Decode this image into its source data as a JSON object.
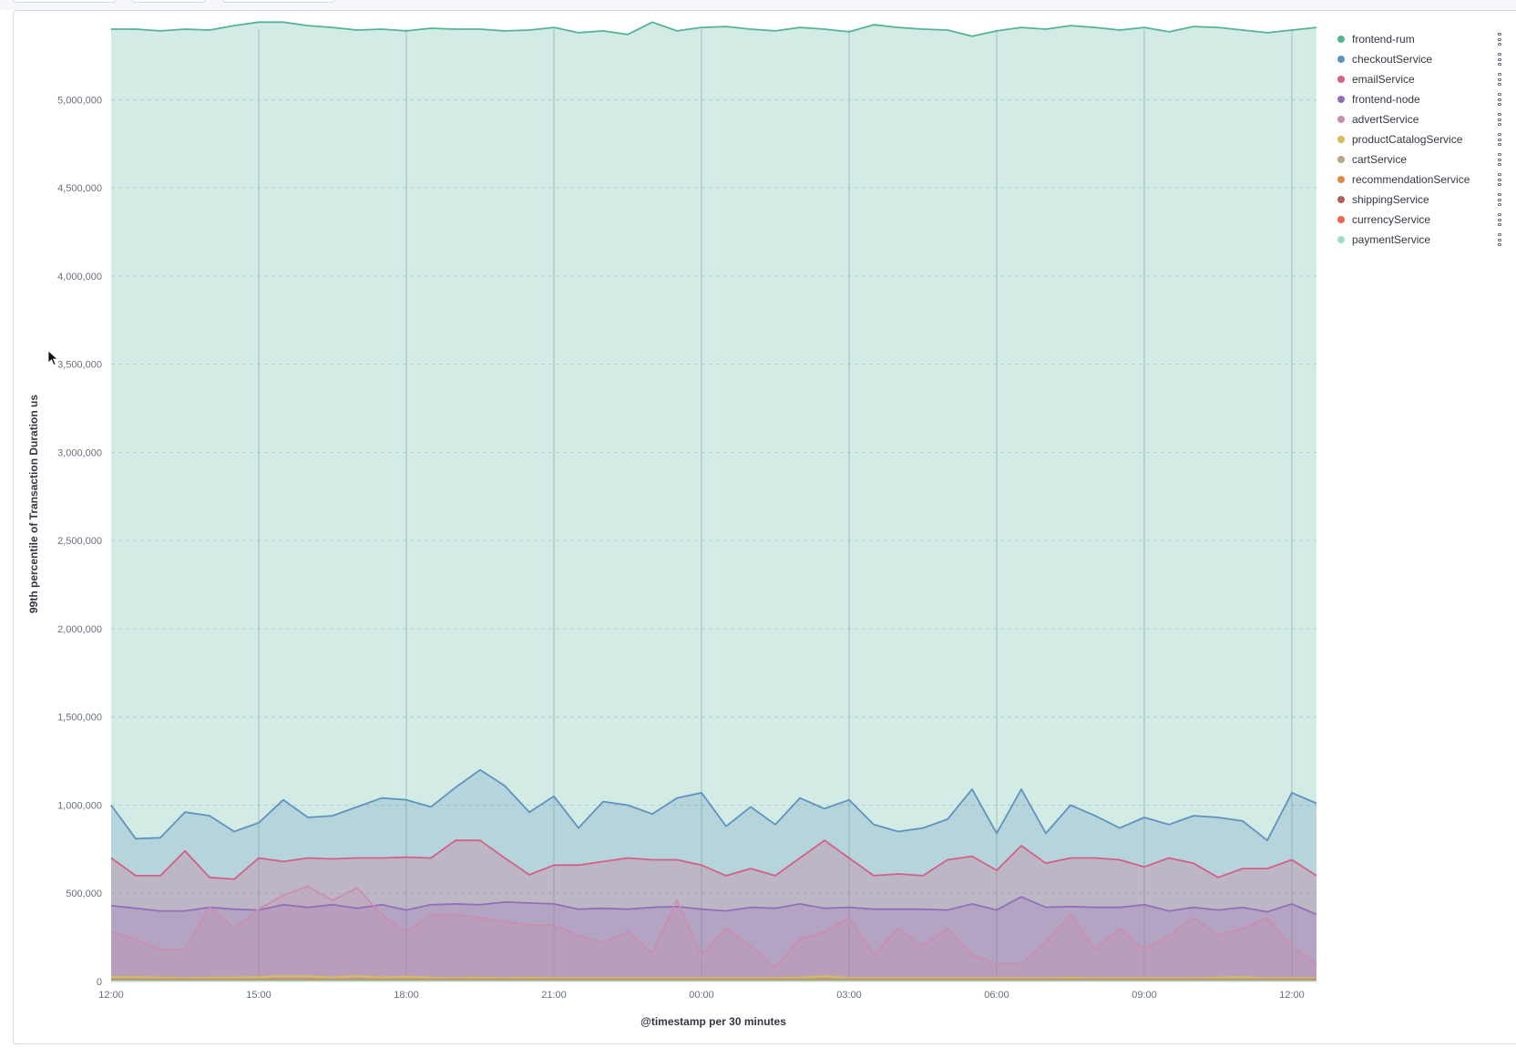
{
  "chart_data": {
    "type": "area",
    "stacked": false,
    "ylabel": "99th percentile of Transaction Duration us",
    "xlabel": "@timestamp per 30 minutes",
    "ylim": [
      0,
      5400000
    ],
    "yticks": [
      {
        "value": 0,
        "label": "0"
      },
      {
        "value": 500000,
        "label": "500,000"
      },
      {
        "value": 1000000,
        "label": "1,000,000"
      },
      {
        "value": 1500000,
        "label": "1,500,000"
      },
      {
        "value": 2000000,
        "label": "2,000,000"
      },
      {
        "value": 2500000,
        "label": "2,500,000"
      },
      {
        "value": 3000000,
        "label": "3,000,000"
      },
      {
        "value": 3500000,
        "label": "3,500,000"
      },
      {
        "value": 4000000,
        "label": "4,000,000"
      },
      {
        "value": 4500000,
        "label": "4,500,000"
      },
      {
        "value": 5000000,
        "label": "5,000,000"
      }
    ],
    "xticks": [
      {
        "index": 0,
        "label": "12:00"
      },
      {
        "index": 6,
        "label": "15:00"
      },
      {
        "index": 12,
        "label": "18:00"
      },
      {
        "index": 18,
        "label": "21:00"
      },
      {
        "index": 24,
        "label": "00:00"
      },
      {
        "index": 30,
        "label": "03:00"
      },
      {
        "index": 36,
        "label": "06:00"
      },
      {
        "index": 42,
        "label": "09:00"
      },
      {
        "index": 48,
        "label": "12:00"
      }
    ],
    "x": [
      "12:00",
      "12:30",
      "13:00",
      "13:30",
      "14:00",
      "14:30",
      "15:00",
      "15:30",
      "16:00",
      "16:30",
      "17:00",
      "17:30",
      "18:00",
      "18:30",
      "19:00",
      "19:30",
      "20:00",
      "20:30",
      "21:00",
      "21:30",
      "22:00",
      "22:30",
      "23:00",
      "23:30",
      "00:00",
      "00:30",
      "01:00",
      "01:30",
      "02:00",
      "02:30",
      "03:00",
      "03:30",
      "04:00",
      "04:30",
      "05:00",
      "05:30",
      "06:00",
      "06:30",
      "07:00",
      "07:30",
      "08:00",
      "08:30",
      "09:00",
      "09:30",
      "10:00",
      "10:30",
      "11:00",
      "11:30",
      "12:00",
      "12:30"
    ],
    "series": [
      {
        "name": "frontend-rum",
        "color": "#54b399",
        "values": [
          5400000,
          5400000,
          5390000,
          5400000,
          5395000,
          5420000,
          5440000,
          5440000,
          5420000,
          5410000,
          5395000,
          5400000,
          5390000,
          5405000,
          5400000,
          5400000,
          5390000,
          5395000,
          5410000,
          5380000,
          5390000,
          5370000,
          5440000,
          5390000,
          5410000,
          5415000,
          5400000,
          5390000,
          5410000,
          5400000,
          5385000,
          5425000,
          5410000,
          5400000,
          5395000,
          5360000,
          5390000,
          5410000,
          5400000,
          5420000,
          5410000,
          5395000,
          5410000,
          5385000,
          5415000,
          5410000,
          5395000,
          5380000,
          5395000,
          5410000
        ]
      },
      {
        "name": "checkoutService",
        "color": "#6092c0",
        "values": [
          1000000,
          810000,
          815000,
          960000,
          940000,
          850000,
          900000,
          1030000,
          930000,
          940000,
          990000,
          1040000,
          1030000,
          990000,
          1100000,
          1200000,
          1110000,
          960000,
          1050000,
          870000,
          1020000,
          1000000,
          950000,
          1040000,
          1070000,
          880000,
          990000,
          890000,
          1040000,
          980000,
          1030000,
          890000,
          850000,
          870000,
          920000,
          1090000,
          840000,
          1090000,
          840000,
          1000000,
          940000,
          870000,
          930000,
          890000,
          940000,
          930000,
          910000,
          800000,
          1070000,
          1010000
        ]
      },
      {
        "name": "emailService",
        "color": "#d36086",
        "values": [
          700000,
          600000,
          600000,
          740000,
          590000,
          580000,
          700000,
          680000,
          700000,
          695000,
          700000,
          700000,
          705000,
          700000,
          800000,
          800000,
          700000,
          605000,
          660000,
          660000,
          680000,
          700000,
          690000,
          690000,
          660000,
          600000,
          640000,
          600000,
          700000,
          800000,
          700000,
          600000,
          610000,
          600000,
          690000,
          710000,
          630000,
          770000,
          670000,
          700000,
          700000,
          690000,
          650000,
          700000,
          670000,
          590000,
          640000,
          640000,
          690000,
          600000
        ]
      },
      {
        "name": "frontend-node",
        "color": "#9170b8",
        "values": [
          430000,
          415000,
          400000,
          400000,
          420000,
          410000,
          405000,
          435000,
          420000,
          435000,
          415000,
          435000,
          405000,
          435000,
          440000,
          435000,
          450000,
          445000,
          440000,
          410000,
          415000,
          410000,
          420000,
          425000,
          410000,
          400000,
          420000,
          415000,
          440000,
          415000,
          420000,
          410000,
          410000,
          410000,
          405000,
          440000,
          405000,
          480000,
          420000,
          425000,
          420000,
          420000,
          435000,
          400000,
          420000,
          405000,
          420000,
          395000,
          440000,
          380000
        ]
      },
      {
        "name": "advertService",
        "color": "#ca8eae",
        "values": [
          280000,
          240000,
          180000,
          180000,
          420000,
          300000,
          410000,
          490000,
          540000,
          460000,
          530000,
          380000,
          280000,
          380000,
          380000,
          360000,
          340000,
          320000,
          320000,
          260000,
          220000,
          280000,
          160000,
          460000,
          150000,
          300000,
          200000,
          80000,
          240000,
          280000,
          360000,
          150000,
          300000,
          200000,
          300000,
          150000,
          100000,
          100000,
          220000,
          380000,
          180000,
          300000,
          180000,
          260000,
          360000,
          260000,
          300000,
          360000,
          200000,
          100000
        ]
      },
      {
        "name": "productCatalogService",
        "color": "#d6bf57",
        "values": [
          25000,
          25000,
          22000,
          20000,
          22000,
          22000,
          25000,
          32000,
          30000,
          22000,
          32000,
          22000,
          28000,
          22000,
          20000,
          22000,
          20000,
          22000,
          20000,
          20000,
          20000,
          20000,
          20000,
          20000,
          20000,
          20000,
          20000,
          20000,
          22000,
          30000,
          20000,
          20000,
          20000,
          20000,
          20000,
          20000,
          20000,
          20000,
          20000,
          22000,
          20000,
          20000,
          20000,
          20000,
          20000,
          22000,
          25000,
          20000,
          20000,
          20000
        ]
      },
      {
        "name": "cartService",
        "color": "#b9a888",
        "values": [
          15000,
          15000,
          15000,
          15000,
          15000,
          15000,
          15000,
          15000,
          15000,
          15000,
          15000,
          15000,
          15000,
          15000,
          15000,
          15000,
          15000,
          15000,
          15000,
          15000,
          15000,
          15000,
          15000,
          15000,
          15000,
          15000,
          15000,
          15000,
          15000,
          15000,
          15000,
          15000,
          15000,
          15000,
          15000,
          15000,
          15000,
          15000,
          15000,
          15000,
          15000,
          15000,
          15000,
          15000,
          15000,
          15000,
          15000,
          15000,
          15000,
          15000
        ]
      },
      {
        "name": "recommendationService",
        "color": "#da8b45",
        "values": [
          10000,
          10000,
          10000,
          10000,
          10000,
          10000,
          10000,
          10000,
          10000,
          10000,
          10000,
          10000,
          10000,
          10000,
          10000,
          10000,
          10000,
          10000,
          10000,
          10000,
          10000,
          10000,
          10000,
          10000,
          10000,
          10000,
          10000,
          10000,
          10000,
          10000,
          10000,
          10000,
          10000,
          10000,
          10000,
          10000,
          10000,
          10000,
          10000,
          10000,
          10000,
          10000,
          10000,
          10000,
          10000,
          10000,
          10000,
          10000,
          10000,
          10000
        ]
      },
      {
        "name": "shippingService",
        "color": "#aa6556",
        "values": [
          6000,
          6000,
          6000,
          6000,
          6000,
          6000,
          6000,
          6000,
          6000,
          6000,
          6000,
          6000,
          6000,
          6000,
          6000,
          6000,
          6000,
          6000,
          6000,
          6000,
          6000,
          6000,
          6000,
          6000,
          6000,
          6000,
          6000,
          6000,
          6000,
          6000,
          6000,
          6000,
          6000,
          6000,
          6000,
          6000,
          6000,
          6000,
          6000,
          6000,
          6000,
          6000,
          6000,
          6000,
          6000,
          6000,
          6000,
          6000,
          6000,
          6000
        ]
      },
      {
        "name": "currencyService",
        "color": "#e7664c",
        "values": [
          4000,
          4000,
          4000,
          4000,
          4000,
          4000,
          4000,
          4000,
          4000,
          4000,
          4000,
          4000,
          4000,
          4000,
          4000,
          4000,
          4000,
          4000,
          4000,
          4000,
          4000,
          4000,
          4000,
          4000,
          4000,
          4000,
          4000,
          4000,
          4000,
          4000,
          4000,
          4000,
          4000,
          4000,
          4000,
          4000,
          4000,
          4000,
          4000,
          4000,
          4000,
          4000,
          4000,
          4000,
          4000,
          4000,
          4000,
          4000,
          4000,
          4000
        ]
      },
      {
        "name": "paymentService",
        "color": "#a4dbc8",
        "values": [
          3000,
          3000,
          3000,
          3000,
          3000,
          3000,
          3000,
          3000,
          3000,
          3000,
          3000,
          3000,
          3000,
          3000,
          3000,
          3000,
          3000,
          3000,
          3000,
          3000,
          3000,
          3000,
          3000,
          3000,
          3000,
          3000,
          3000,
          3000,
          3000,
          3000,
          3000,
          3000,
          3000,
          3000,
          3000,
          3000,
          3000,
          3000,
          3000,
          3000,
          3000,
          3000,
          3000,
          3000,
          3000,
          3000,
          3000,
          3000,
          3000,
          3000
        ]
      }
    ],
    "grid": true,
    "legend_position": "right"
  }
}
